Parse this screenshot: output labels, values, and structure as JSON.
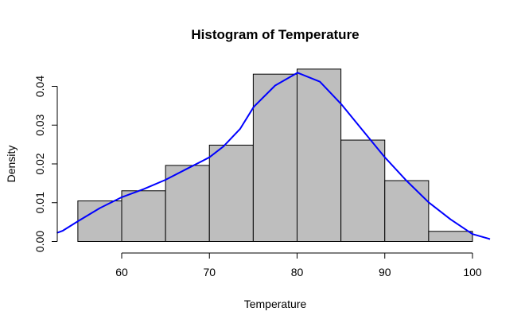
{
  "chart_data": {
    "type": "bar",
    "title": "Histogram of Temperature",
    "xlabel": "Temperature",
    "ylabel": "Density",
    "xlim": [
      52.6,
      102
    ],
    "ylim": [
      0,
      0.0444
    ],
    "x_ticks": [
      60,
      70,
      80,
      90,
      100
    ],
    "x_tick_labels": [
      "60",
      "70",
      "80",
      "90",
      "100"
    ],
    "y_ticks": [
      0,
      0.01,
      0.02,
      0.03,
      0.04
    ],
    "y_tick_labels": [
      "0.00",
      "0.01",
      "0.02",
      "0.03",
      "0.04"
    ],
    "bins": [
      {
        "from": 55,
        "to": 60,
        "density": 0.01046
      },
      {
        "from": 60,
        "to": 65,
        "density": 0.01307
      },
      {
        "from": 65,
        "to": 70,
        "density": 0.01961
      },
      {
        "from": 70,
        "to": 75,
        "density": 0.02484
      },
      {
        "from": 75,
        "to": 80,
        "density": 0.04314
      },
      {
        "from": 80,
        "to": 85,
        "density": 0.04444
      },
      {
        "from": 85,
        "to": 90,
        "density": 0.02614
      },
      {
        "from": 90,
        "to": 95,
        "density": 0.01569
      },
      {
        "from": 95,
        "to": 100,
        "density": 0.00261
      }
    ],
    "density_curve": {
      "color": "#0000ff",
      "x": [
        52.6,
        53.3,
        55,
        57.5,
        60,
        62.5,
        65,
        67.5,
        70,
        71.6,
        73.5,
        75.06,
        77.5,
        80.05,
        82.6,
        85.03,
        87.5,
        90,
        92.5,
        95,
        97.5,
        100,
        101.8,
        102
      ],
      "y": [
        0.0022,
        0.0028,
        0.0052,
        0.0086,
        0.0114,
        0.0135,
        0.0159,
        0.0188,
        0.0217,
        0.0245,
        0.029,
        0.0347,
        0.0402,
        0.0435,
        0.0412,
        0.0354,
        0.0286,
        0.0217,
        0.0156,
        0.0101,
        0.0057,
        0.0019,
        0.00075,
        0.0006
      ]
    },
    "bar_fill": "#bebebe",
    "bar_stroke": "#000000",
    "grid": false
  }
}
